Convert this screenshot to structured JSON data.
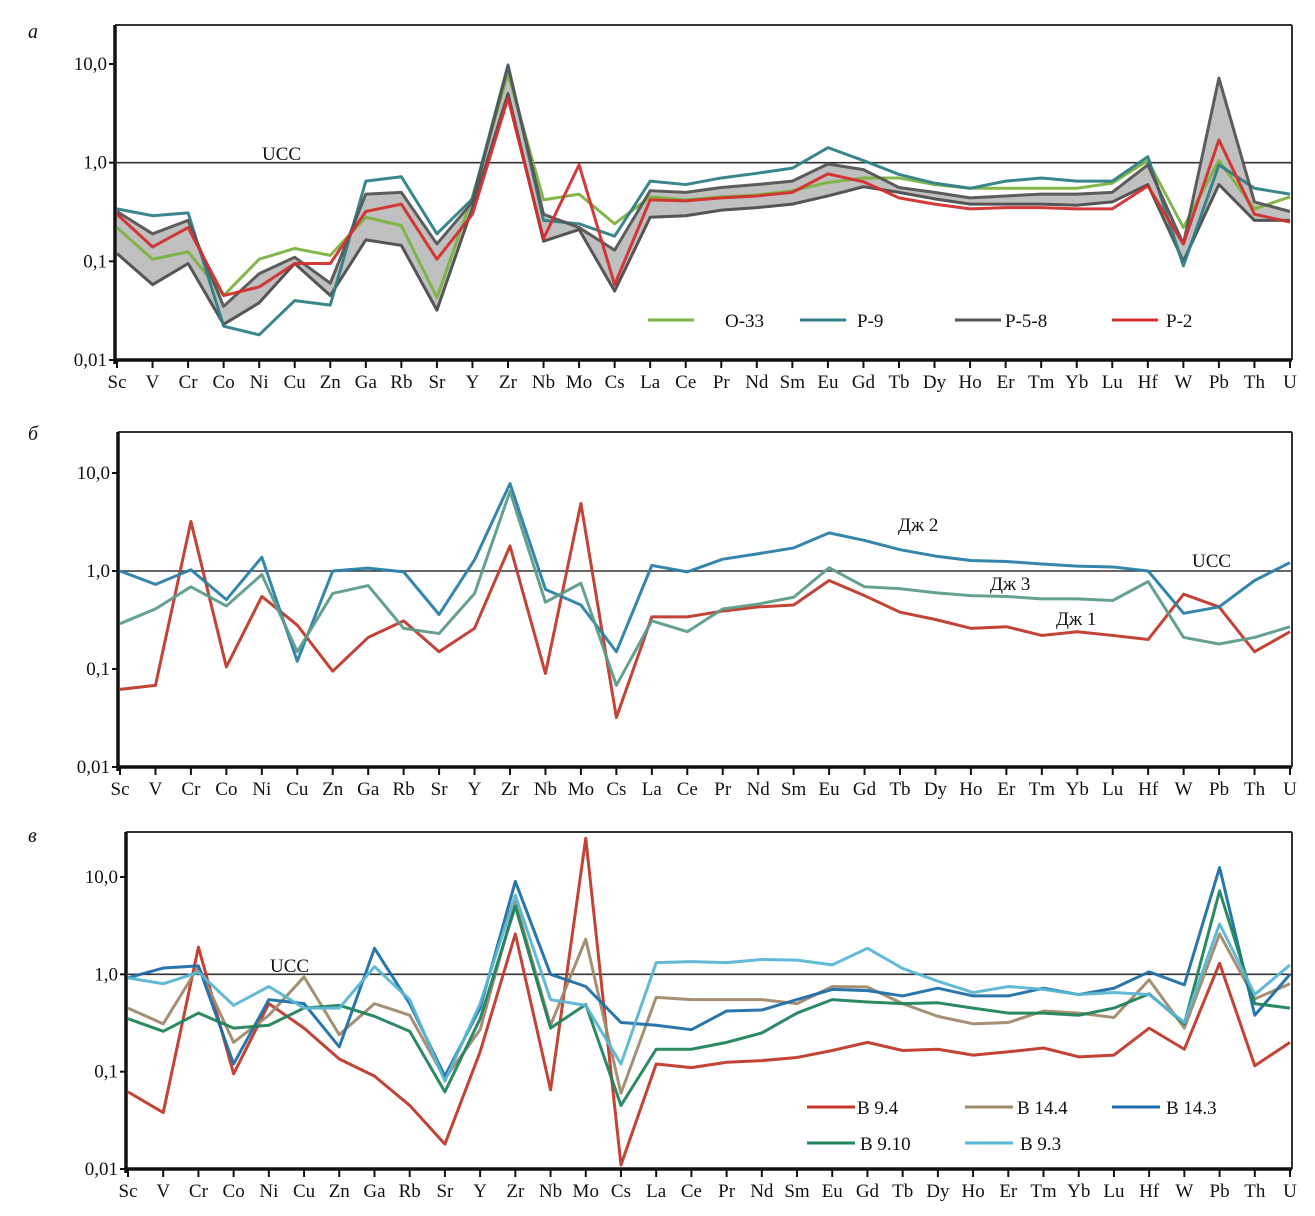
{
  "figure": {
    "reference_label": "UCC",
    "y_scale": "log"
  },
  "chart_data": [
    {
      "type": "line",
      "panel": "a",
      "ylabel": "",
      "xlabel": "",
      "ylim": [
        0.01,
        30
      ],
      "yscale": "log",
      "yticks": [
        {
          "value": 10,
          "label": "10,0"
        },
        {
          "value": 1,
          "label": "1,0"
        },
        {
          "value": 0.1,
          "label": "0,1"
        },
        {
          "value": 0.01,
          "label": "0,01"
        }
      ],
      "reference_line": {
        "value": 1.0,
        "label": "UCC"
      },
      "legend_position": "bottom-right",
      "categories": [
        "Sc",
        "V",
        "Cr",
        "Co",
        "Ni",
        "Cu",
        "Zn",
        "Ga",
        "Rb",
        "Sr",
        "Y",
        "Zr",
        "Nb",
        "Mo",
        "Cs",
        "La",
        "Ce",
        "Pr",
        "Nd",
        "Sm",
        "Eu",
        "Gd",
        "Tb",
        "Dy",
        "Ho",
        "Er",
        "Tm",
        "Yb",
        "Lu",
        "Hf",
        "W",
        "Pb",
        "Th",
        "U"
      ],
      "band": {
        "name": "P-5-8 range",
        "color": "#c0c0c0",
        "edge_color": "#555555",
        "upper": [
          0.32,
          0.19,
          0.26,
          0.035,
          0.075,
          0.11,
          0.06,
          0.48,
          0.5,
          0.15,
          0.4,
          9.5,
          0.3,
          0.22,
          0.13,
          0.52,
          0.5,
          0.56,
          0.6,
          0.65,
          0.97,
          0.85,
          0.56,
          0.5,
          0.44,
          0.46,
          0.48,
          0.48,
          0.5,
          0.95,
          0.15,
          7.2,
          0.4,
          0.32
        ],
        "lower": [
          0.12,
          0.058,
          0.095,
          0.023,
          0.038,
          0.095,
          0.045,
          0.165,
          0.145,
          0.032,
          0.35,
          5.0,
          0.16,
          0.21,
          0.05,
          0.28,
          0.29,
          0.33,
          0.35,
          0.38,
          0.46,
          0.57,
          0.5,
          0.43,
          0.38,
          0.38,
          0.38,
          0.37,
          0.4,
          0.6,
          0.1,
          0.6,
          0.26,
          0.26
        ]
      },
      "series": [
        {
          "name": "O-33",
          "color": "#7cb342",
          "values": [
            0.22,
            0.105,
            0.125,
            0.045,
            0.105,
            0.135,
            0.115,
            0.28,
            0.23,
            0.043,
            0.45,
            8.0,
            0.42,
            0.48,
            0.24,
            0.45,
            0.42,
            0.45,
            0.47,
            0.52,
            0.63,
            0.7,
            0.7,
            0.6,
            0.55,
            0.55,
            0.55,
            0.55,
            0.62,
            1.05,
            0.22,
            1.05,
            0.34,
            0.45
          ]
        },
        {
          "name": "P-9",
          "color": "#2f7f87",
          "values": [
            0.34,
            0.29,
            0.31,
            0.022,
            0.018,
            0.04,
            0.036,
            0.65,
            0.72,
            0.19,
            0.43,
            9.8,
            0.26,
            0.24,
            0.18,
            0.65,
            0.6,
            0.7,
            0.78,
            0.88,
            1.42,
            1.05,
            0.76,
            0.62,
            0.55,
            0.65,
            0.7,
            0.65,
            0.65,
            1.15,
            0.09,
            0.95,
            0.55,
            0.48
          ]
        },
        {
          "name": "P-5-8",
          "color": "#555555",
          "values": [
            0.32,
            0.19,
            0.26,
            0.035,
            0.075,
            0.11,
            0.06,
            0.48,
            0.5,
            0.15,
            0.4,
            9.5,
            0.3,
            0.22,
            0.13,
            0.52,
            0.5,
            0.56,
            0.6,
            0.65,
            0.97,
            0.85,
            0.56,
            0.5,
            0.44,
            0.46,
            0.48,
            0.48,
            0.5,
            0.95,
            0.15,
            7.2,
            0.4,
            0.32
          ]
        },
        {
          "name": "P-2",
          "color": "#d32f2f",
          "values": [
            0.3,
            0.14,
            0.22,
            0.045,
            0.055,
            0.095,
            0.095,
            0.32,
            0.38,
            0.105,
            0.3,
            4.5,
            0.17,
            0.95,
            0.058,
            0.42,
            0.41,
            0.44,
            0.46,
            0.5,
            0.77,
            0.64,
            0.44,
            0.38,
            0.34,
            0.35,
            0.35,
            0.34,
            0.34,
            0.58,
            0.15,
            1.7,
            0.3,
            0.25
          ]
        }
      ]
    },
    {
      "type": "line",
      "panel": "б",
      "ylabel": "",
      "xlabel": "",
      "ylim": [
        0.01,
        30
      ],
      "yscale": "log",
      "yticks": [
        {
          "value": 10,
          "label": "10,0"
        },
        {
          "value": 1,
          "label": "1,0"
        },
        {
          "value": 0.1,
          "label": "0,1"
        },
        {
          "value": 0.01,
          "label": "0,01"
        }
      ],
      "reference_line": {
        "value": 1.0,
        "label": "UCC"
      },
      "categories": [
        "Sc",
        "V",
        "Cr",
        "Co",
        "Ni",
        "Cu",
        "Zn",
        "Ga",
        "Rb",
        "Sr",
        "Y",
        "Zr",
        "Nb",
        "Mo",
        "Cs",
        "La",
        "Ce",
        "Pr",
        "Nd",
        "Sm",
        "Eu",
        "Gd",
        "Tb",
        "Dy",
        "Ho",
        "Er",
        "Tm",
        "Yb",
        "Lu",
        "Hf",
        "W",
        "Pb",
        "Th",
        "U"
      ],
      "series": [
        {
          "name": "Дж 1",
          "color": "#c0392b",
          "values": [
            0.062,
            0.068,
            3.2,
            0.105,
            0.55,
            0.28,
            0.095,
            0.21,
            0.31,
            0.15,
            0.26,
            1.8,
            0.09,
            4.9,
            0.032,
            0.34,
            0.34,
            0.39,
            0.43,
            0.45,
            0.8,
            0.56,
            0.38,
            0.32,
            0.26,
            0.27,
            0.22,
            0.24,
            0.22,
            0.2,
            0.58,
            0.43,
            0.15,
            0.24
          ]
        },
        {
          "name": "Дж 2",
          "color": "#2a7fa8",
          "values": [
            1.0,
            0.73,
            1.03,
            0.51,
            1.38,
            0.12,
            1.0,
            1.07,
            0.98,
            0.36,
            1.3,
            7.8,
            0.65,
            0.45,
            0.15,
            1.14,
            0.98,
            1.32,
            1.5,
            1.72,
            2.45,
            2.05,
            1.65,
            1.42,
            1.28,
            1.25,
            1.18,
            1.12,
            1.1,
            1.0,
            0.37,
            0.43,
            0.8,
            1.22
          ]
        },
        {
          "name": "Дж 3",
          "color": "#5e9c8a",
          "values": [
            0.29,
            0.41,
            0.69,
            0.44,
            0.92,
            0.15,
            0.59,
            0.71,
            0.26,
            0.23,
            0.59,
            6.5,
            0.48,
            0.75,
            0.068,
            0.31,
            0.24,
            0.41,
            0.46,
            0.54,
            1.08,
            0.69,
            0.66,
            0.6,
            0.56,
            0.55,
            0.52,
            0.52,
            0.5,
            0.78,
            0.21,
            0.18,
            0.21,
            0.27
          ]
        }
      ],
      "annotations": [
        {
          "text": "Дж 2",
          "series": "Дж 2"
        },
        {
          "text": "Дж 3",
          "series": "Дж 3"
        },
        {
          "text": "Дж 1",
          "series": "Дж 1"
        },
        {
          "text": "UCC",
          "series": "reference"
        }
      ]
    },
    {
      "type": "line",
      "panel": "в",
      "ylabel": "",
      "xlabel": "",
      "ylim": [
        0.01,
        30
      ],
      "yscale": "log",
      "yticks": [
        {
          "value": 10,
          "label": "10,0"
        },
        {
          "value": 1,
          "label": "1,0"
        },
        {
          "value": 0.1,
          "label": "0,1"
        },
        {
          "value": 0.01,
          "label": "0,01"
        }
      ],
      "reference_line": {
        "value": 1.0,
        "label": "UCC"
      },
      "legend_position": "bottom-right",
      "categories": [
        "Sc",
        "V",
        "Cr",
        "Co",
        "Ni",
        "Cu",
        "Zn",
        "Ga",
        "Rb",
        "Sr",
        "Y",
        "Zr",
        "Nb",
        "Mo",
        "Cs",
        "La",
        "Ce",
        "Pr",
        "Nd",
        "Sm",
        "Eu",
        "Gd",
        "Tb",
        "Dy",
        "Ho",
        "Er",
        "Tm",
        "Yb",
        "Lu",
        "Hf",
        "W",
        "Pb",
        "Th",
        "U"
      ],
      "series": [
        {
          "name": "B 9.4",
          "color": "#c0392b",
          "values": [
            0.062,
            0.038,
            1.9,
            0.095,
            0.5,
            0.28,
            0.135,
            0.09,
            0.045,
            0.018,
            0.16,
            2.6,
            0.065,
            25,
            0.011,
            0.12,
            0.11,
            0.125,
            0.13,
            0.14,
            0.165,
            0.2,
            0.165,
            0.17,
            0.148,
            0.16,
            0.175,
            0.142,
            0.148,
            0.28,
            0.17,
            1.3,
            0.115,
            0.2
          ]
        },
        {
          "name": "B 14.4",
          "color": "#a08a6e",
          "values": [
            0.45,
            0.31,
            1.2,
            0.2,
            0.38,
            0.94,
            0.24,
            0.5,
            0.38,
            0.085,
            0.27,
            5.6,
            0.3,
            2.3,
            0.06,
            0.58,
            0.55,
            0.55,
            0.55,
            0.5,
            0.75,
            0.74,
            0.5,
            0.37,
            0.31,
            0.32,
            0.42,
            0.4,
            0.36,
            0.88,
            0.28,
            2.6,
            0.56,
            0.8
          ]
        },
        {
          "name": "B 14.3",
          "color": "#1f6fa8",
          "values": [
            0.92,
            1.16,
            1.22,
            0.12,
            0.55,
            0.5,
            0.18,
            1.85,
            0.5,
            0.09,
            0.45,
            9.0,
            1.0,
            0.75,
            0.32,
            0.3,
            0.27,
            0.42,
            0.43,
            0.55,
            0.7,
            0.68,
            0.6,
            0.72,
            0.6,
            0.6,
            0.72,
            0.62,
            0.72,
            1.06,
            0.78,
            12.5,
            0.38,
            1.0
          ]
        },
        {
          "name": "B 9.10",
          "color": "#21845a",
          "values": [
            0.35,
            0.26,
            0.4,
            0.28,
            0.3,
            0.45,
            0.48,
            0.37,
            0.26,
            0.062,
            0.35,
            5.0,
            0.28,
            0.49,
            0.045,
            0.17,
            0.17,
            0.2,
            0.25,
            0.4,
            0.55,
            0.52,
            0.5,
            0.51,
            0.45,
            0.4,
            0.4,
            0.38,
            0.45,
            0.63,
            0.31,
            7.2,
            0.5,
            0.45
          ]
        },
        {
          "name": "B 9.3",
          "color": "#5ab6d4",
          "values": [
            0.92,
            0.8,
            1.05,
            0.48,
            0.75,
            0.45,
            0.45,
            1.2,
            0.55,
            0.08,
            0.5,
            6.5,
            0.55,
            0.48,
            0.12,
            1.32,
            1.35,
            1.32,
            1.42,
            1.4,
            1.25,
            1.85,
            1.15,
            0.85,
            0.65,
            0.75,
            0.7,
            0.62,
            0.65,
            0.62,
            0.32,
            3.3,
            0.62,
            1.25
          ]
        }
      ]
    }
  ]
}
